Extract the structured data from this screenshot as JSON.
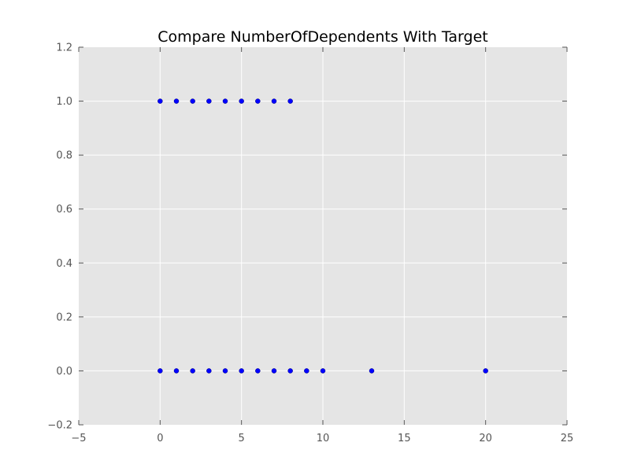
{
  "chart_data": {
    "type": "scatter",
    "title": "Compare NumberOfDependents With Target",
    "xlabel": "",
    "ylabel": "",
    "xlim": [
      -5,
      25
    ],
    "ylim": [
      -0.2,
      1.2
    ],
    "x_ticks": [
      -5,
      0,
      5,
      10,
      15,
      20,
      25
    ],
    "y_ticks": [
      -0.2,
      0.0,
      0.2,
      0.4,
      0.6,
      0.8,
      1.0,
      1.2
    ],
    "x_tick_labels": [
      "−5",
      "0",
      "5",
      "10",
      "15",
      "20",
      "25"
    ],
    "y_tick_labels": [
      "−0.2",
      "0.0",
      "0.2",
      "0.4",
      "0.6",
      "0.8",
      "1.0",
      "1.2"
    ],
    "grid": true,
    "series": [
      {
        "points": [
          [
            0,
            1
          ],
          [
            1,
            1
          ],
          [
            2,
            1
          ],
          [
            3,
            1
          ],
          [
            4,
            1
          ],
          [
            5,
            1
          ],
          [
            6,
            1
          ],
          [
            7,
            1
          ],
          [
            8,
            1
          ],
          [
            0,
            0
          ],
          [
            1,
            0
          ],
          [
            2,
            0
          ],
          [
            3,
            0
          ],
          [
            4,
            0
          ],
          [
            5,
            0
          ],
          [
            6,
            0
          ],
          [
            7,
            0
          ],
          [
            8,
            0
          ],
          [
            9,
            0
          ],
          [
            10,
            0
          ],
          [
            13,
            0
          ],
          [
            20,
            0
          ]
        ]
      }
    ],
    "colors": {
      "plot_background": "#e5e5e5",
      "grid": "#ffffff",
      "marker": "#0000ff",
      "tick_text": "#555555"
    }
  }
}
